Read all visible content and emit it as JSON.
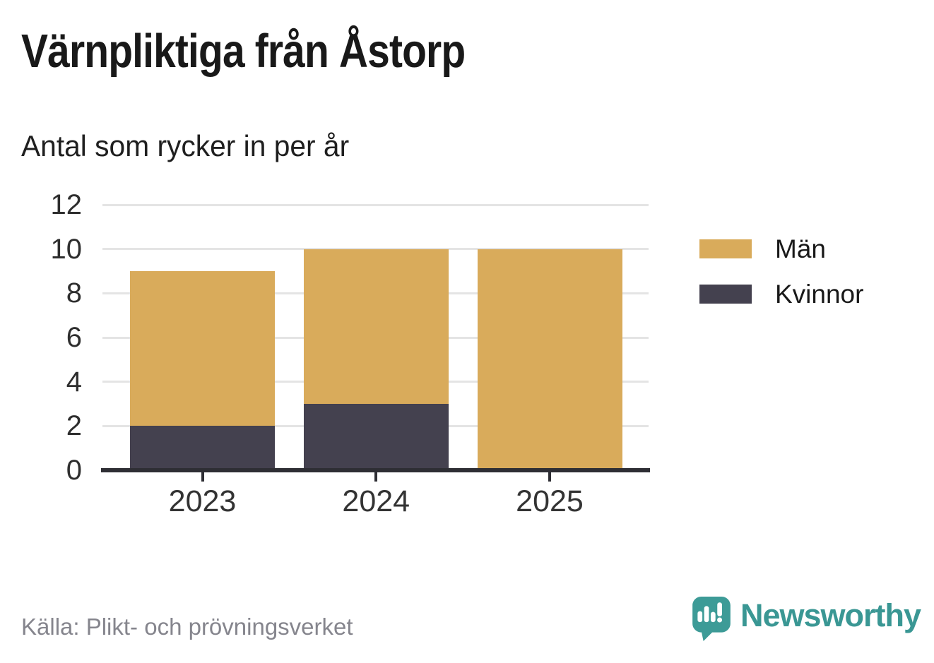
{
  "header": {
    "title": "Värnpliktiga från Åstorp",
    "subtitle": "Antal som rycker in per år"
  },
  "footer": {
    "source": "Källa: Plikt- och prövningsverket",
    "brand_name": "Newsworthy",
    "brand_color": "#3A9794",
    "brand_icon": "newsworthy-bubble-barchart-icon"
  },
  "chart_data": {
    "type": "bar",
    "stacked": true,
    "title": "Värnpliktiga från Åstorp",
    "subtitle": "Antal som rycker in per år",
    "categories": [
      "2023",
      "2024",
      "2025"
    ],
    "series": [
      {
        "name": "Män",
        "color": "#D9AB5B",
        "values": [
          7,
          7,
          10
        ]
      },
      {
        "name": "Kvinnor",
        "color": "#44414F",
        "values": [
          2,
          3,
          0
        ]
      }
    ],
    "totals": [
      9,
      10,
      10
    ],
    "y_ticks": [
      0,
      2,
      4,
      6,
      8,
      10,
      12
    ],
    "ylim": [
      0,
      12
    ],
    "xlabel": "",
    "ylabel": "",
    "grid": "horizontal",
    "grid_color": "#E4E4E4",
    "axis_color": "#2E2E34",
    "legend_position": "right",
    "legend": [
      {
        "label": "Män",
        "color": "#D9AB5B"
      },
      {
        "label": "Kvinnor",
        "color": "#44414F"
      }
    ]
  }
}
